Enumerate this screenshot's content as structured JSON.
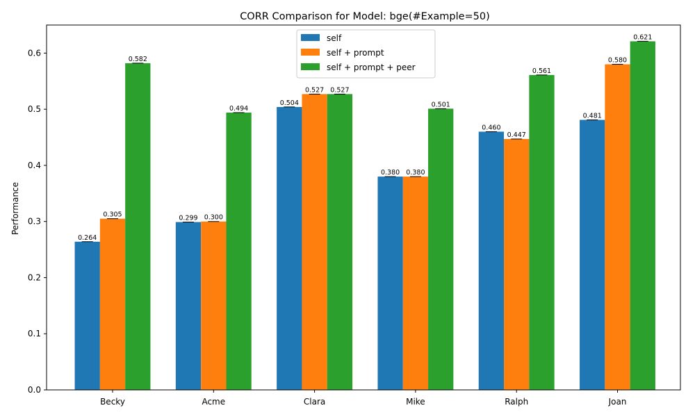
{
  "chart_data": {
    "type": "bar",
    "title": "CORR Comparison for Model: bge(#Example=50)",
    "xlabel": "",
    "ylabel": "Performance",
    "ylim": [
      0,
      0.65
    ],
    "yticks": [
      0.0,
      0.1,
      0.2,
      0.3,
      0.4,
      0.5,
      0.6
    ],
    "ytick_labels": [
      "0.0",
      "0.1",
      "0.2",
      "0.3",
      "0.4",
      "0.5",
      "0.6"
    ],
    "categories": [
      "Becky",
      "Acme",
      "Clara",
      "Mike",
      "Ralph",
      "Joan"
    ],
    "series": [
      {
        "name": "self",
        "color": "#1f77b4",
        "values": [
          0.264,
          0.299,
          0.504,
          0.38,
          0.46,
          0.481
        ],
        "labels": [
          "0.264",
          "0.299",
          "0.504",
          "0.380",
          "0.460",
          "0.481"
        ]
      },
      {
        "name": "self + prompt",
        "color": "#ff7f0e",
        "values": [
          0.305,
          0.3,
          0.527,
          0.38,
          0.447,
          0.58
        ],
        "labels": [
          "0.305",
          "0.300",
          "0.527",
          "0.380",
          "0.447",
          "0.580"
        ]
      },
      {
        "name": "self + prompt + peer",
        "color": "#2ca02c",
        "values": [
          0.582,
          0.494,
          0.527,
          0.501,
          0.561,
          0.621
        ],
        "labels": [
          "0.582",
          "0.494",
          "0.527",
          "0.501",
          "0.561",
          "0.621"
        ]
      }
    ],
    "legend_position": "top-center",
    "grid": false,
    "error_bars": true
  }
}
